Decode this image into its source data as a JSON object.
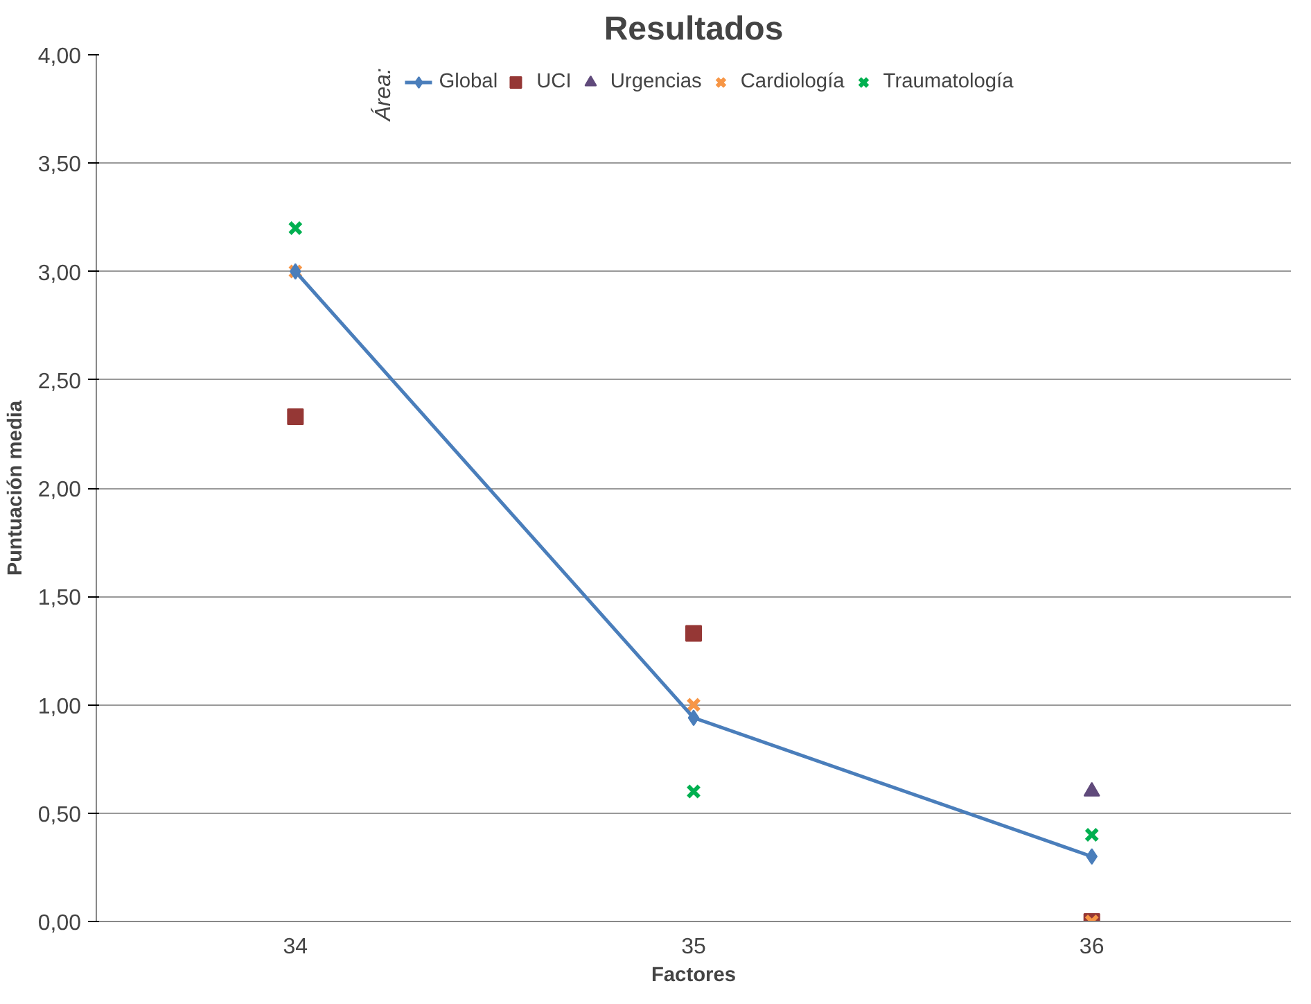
{
  "chart_data": {
    "type": "scatter",
    "title": "Resultados",
    "xlabel": "Factores",
    "ylabel": "Puntuación media",
    "legend_title": "Área:",
    "legend": "top",
    "grid": "y",
    "categories": [
      "34",
      "35",
      "36"
    ],
    "ylim": [
      0,
      4
    ],
    "yticks": [
      {
        "value": 0,
        "label": "0,00"
      },
      {
        "value": 0.5,
        "label": "0,50"
      },
      {
        "value": 1,
        "label": "1,00"
      },
      {
        "value": 1.5,
        "label": "1,50"
      },
      {
        "value": 2,
        "label": "2,00"
      },
      {
        "value": 2.5,
        "label": "2,50"
      },
      {
        "value": 3,
        "label": "3,00"
      },
      {
        "value": 3.5,
        "label": "3,50"
      },
      {
        "value": 4,
        "label": "4,00"
      }
    ],
    "series": [
      {
        "name": "Global",
        "type": "line",
        "marker": "diamond",
        "color": "#4a7ebb",
        "values": [
          3.0,
          0.94,
          0.3
        ]
      },
      {
        "name": "UCI",
        "marker": "square",
        "color": "#953735",
        "values": [
          2.33,
          1.33,
          0.0
        ]
      },
      {
        "name": "Urgencias",
        "marker": "triangle",
        "color": "#604a7b",
        "values": [
          null,
          null,
          0.6
        ]
      },
      {
        "name": "Cardiología",
        "marker": "cross",
        "color": "#f79646",
        "values": [
          3.0,
          1.0,
          0.0
        ]
      },
      {
        "name": "Traumatología",
        "marker": "cross",
        "color": "#00b050",
        "values": [
          3.2,
          0.6,
          0.4
        ]
      }
    ]
  }
}
